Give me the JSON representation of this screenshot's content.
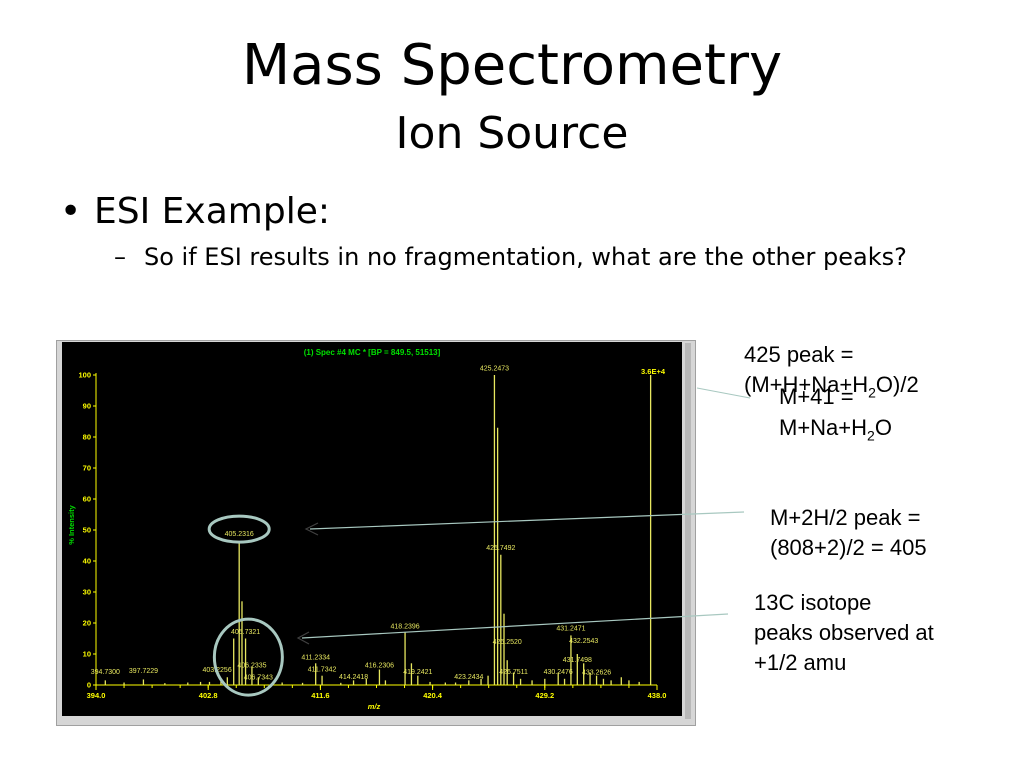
{
  "slide": {
    "title": "Mass Spectrometry",
    "subtitle": "Ion Source",
    "bullet1": "ESI Example:",
    "bullet2": "So if ESI results in no fragmentation, what are the other peaks?"
  },
  "notes": {
    "n425_a": "425 peak =",
    "n425_b_pre": "(M+H+Na+H",
    "n425_b_sub": "2",
    "n425_b_post": "O)/2",
    "n41_a": "M+41 =",
    "n41_b_pre": "M+Na+H",
    "n41_b_sub": "2",
    "n41_b_post": "O",
    "n2h_a": "M+2H/2 peak =",
    "n2h_b": "(808+2)/2 = 405",
    "n13c_a": "13C isotope",
    "n13c_b": "peaks observed at",
    "n13c_c": "+1/2 amu"
  },
  "colors": {
    "background": "#000000",
    "trace": "#e8e860",
    "axis_text": "#ffff00",
    "header_text": "#00e000",
    "ring": "#a8c8c0"
  },
  "chart_data": {
    "type": "bar",
    "title": "(1) Spec #4 MC * [BP = 849.5, 51513]",
    "xlabel": "m/z",
    "ylabel": "% Intensity",
    "max_label": "3.6E+4",
    "xlim": [
      394.0,
      438.0
    ],
    "ylim": [
      0,
      100
    ],
    "x_ticks": [
      "394.0",
      "402.8",
      "411.6",
      "420.4",
      "429.2",
      "438.0"
    ],
    "x_tick_values": [
      394.0,
      402.8,
      411.6,
      420.4,
      429.2,
      438.0
    ],
    "y_ticks": [
      "0",
      "10",
      "20",
      "30",
      "40",
      "50",
      "60",
      "70",
      "80",
      "90",
      "100"
    ],
    "y_tick_values": [
      0,
      10,
      20,
      30,
      40,
      50,
      60,
      70,
      80,
      90,
      100
    ],
    "peaks": [
      {
        "mz": 394.73,
        "intensity": 1.5
      },
      {
        "mz": 396.2,
        "intensity": 0.8
      },
      {
        "mz": 397.72,
        "intensity": 1.8
      },
      {
        "mz": 399.4,
        "intensity": 0.6
      },
      {
        "mz": 401.2,
        "intensity": 0.8
      },
      {
        "mz": 402.2,
        "intensity": 1.0
      },
      {
        "mz": 402.9,
        "intensity": 1.0
      },
      {
        "mz": 403.8,
        "intensity": 1.2
      },
      {
        "mz": 404.3,
        "intensity": 2.5
      },
      {
        "mz": 404.8,
        "intensity": 15
      },
      {
        "mz": 405.23,
        "intensity": 46
      },
      {
        "mz": 405.45,
        "intensity": 27
      },
      {
        "mz": 405.73,
        "intensity": 15
      },
      {
        "mz": 406.23,
        "intensity": 6
      },
      {
        "mz": 406.73,
        "intensity": 2.5
      },
      {
        "mz": 408.6,
        "intensity": 0.8
      },
      {
        "mz": 410.2,
        "intensity": 0.7
      },
      {
        "mz": 411.23,
        "intensity": 7
      },
      {
        "mz": 411.73,
        "intensity": 3
      },
      {
        "mz": 413.2,
        "intensity": 0.7
      },
      {
        "mz": 414.2,
        "intensity": 1.5
      },
      {
        "mz": 415.2,
        "intensity": 2
      },
      {
        "mz": 416.23,
        "intensity": 5
      },
      {
        "mz": 416.7,
        "intensity": 1.5
      },
      {
        "mz": 418.24,
        "intensity": 17
      },
      {
        "mz": 418.74,
        "intensity": 7
      },
      {
        "mz": 419.24,
        "intensity": 3
      },
      {
        "mz": 420.2,
        "intensity": 1
      },
      {
        "mz": 421.4,
        "intensity": 0.8
      },
      {
        "mz": 422.2,
        "intensity": 0.8
      },
      {
        "mz": 423.24,
        "intensity": 1.5
      },
      {
        "mz": 424.2,
        "intensity": 2
      },
      {
        "mz": 424.75,
        "intensity": 3
      },
      {
        "mz": 425.25,
        "intensity": 100
      },
      {
        "mz": 425.5,
        "intensity": 83
      },
      {
        "mz": 425.75,
        "intensity": 42
      },
      {
        "mz": 426.0,
        "intensity": 23
      },
      {
        "mz": 426.25,
        "intensity": 8
      },
      {
        "mz": 426.75,
        "intensity": 4
      },
      {
        "mz": 427.3,
        "intensity": 2
      },
      {
        "mz": 428.2,
        "intensity": 1.5
      },
      {
        "mz": 429.2,
        "intensity": 2
      },
      {
        "mz": 430.25,
        "intensity": 4
      },
      {
        "mz": 430.75,
        "intensity": 2
      },
      {
        "mz": 431.25,
        "intensity": 16
      },
      {
        "mz": 431.75,
        "intensity": 10
      },
      {
        "mz": 432.25,
        "intensity": 7
      },
      {
        "mz": 432.75,
        "intensity": 4
      },
      {
        "mz": 433.26,
        "intensity": 3
      },
      {
        "mz": 433.8,
        "intensity": 2
      },
      {
        "mz": 434.4,
        "intensity": 1.5
      },
      {
        "mz": 435.2,
        "intensity": 2.5
      },
      {
        "mz": 435.8,
        "intensity": 1.5
      },
      {
        "mz": 436.6,
        "intensity": 1
      },
      {
        "mz": 437.5,
        "intensity": 100
      }
    ],
    "peak_labels": [
      {
        "text": "394.7300",
        "mz": 394.73,
        "intensity": 3.5
      },
      {
        "text": "397.7229",
        "mz": 397.72,
        "intensity": 3.8
      },
      {
        "text": "403.2256",
        "mz": 403.5,
        "intensity": 4.2
      },
      {
        "text": "405.2316",
        "mz": 405.23,
        "intensity": 48
      },
      {
        "text": "405.7321",
        "mz": 405.73,
        "intensity": 16.5
      },
      {
        "text": "406.2335",
        "mz": 406.23,
        "intensity": 5.6
      },
      {
        "text": "406.7343",
        "mz": 406.73,
        "intensity": 1.8
      },
      {
        "text": "411.2334",
        "mz": 411.23,
        "intensity": 8.2
      },
      {
        "text": "411.7342",
        "mz": 411.73,
        "intensity": 4.3
      },
      {
        "text": "414.2418",
        "mz": 414.2,
        "intensity": 1.9
      },
      {
        "text": "416.2306",
        "mz": 416.23,
        "intensity": 5.6
      },
      {
        "text": "418.2396",
        "mz": 418.24,
        "intensity": 18.3
      },
      {
        "text": "419.2421",
        "mz": 419.24,
        "intensity": 3.6
      },
      {
        "text": "423.2434",
        "mz": 423.24,
        "intensity": 1.9
      },
      {
        "text": "425.2473",
        "mz": 425.25,
        "intensity": 101.5
      },
      {
        "text": "425.7492",
        "mz": 425.75,
        "intensity": 43.5
      },
      {
        "text": "426.2520",
        "mz": 426.25,
        "intensity": 13.2
      },
      {
        "text": "426.7511",
        "mz": 426.75,
        "intensity": 3.6
      },
      {
        "text": "430.2476",
        "mz": 430.25,
        "intensity": 3.6
      },
      {
        "text": "431.2471",
        "mz": 431.25,
        "intensity": 17.6
      },
      {
        "text": "432.2543",
        "mz": 432.25,
        "intensity": 13.5
      },
      {
        "text": "431.7498",
        "mz": 431.75,
        "intensity": 7.5
      },
      {
        "text": "433.2626",
        "mz": 433.26,
        "intensity": 3.4
      }
    ],
    "grid": false,
    "legend": "none"
  }
}
